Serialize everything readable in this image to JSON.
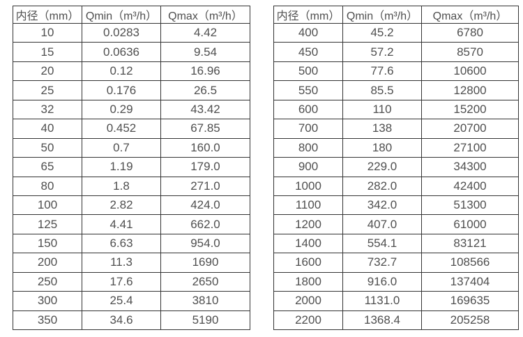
{
  "colors": {
    "border": "#333333",
    "text": "#4f4f4f",
    "background": "#ffffff"
  },
  "tables": [
    {
      "name": "flow-table-small-diameters",
      "headers": [
        "内径（mm）",
        "Qmin（m³/h）",
        "Qmax（m³/h）"
      ],
      "rows": [
        [
          "10",
          "0.0283",
          "4.42"
        ],
        [
          "15",
          "0.0636",
          "9.54"
        ],
        [
          "20",
          "0.12",
          "16.96"
        ],
        [
          "25",
          "0.176",
          "26.5"
        ],
        [
          "32",
          "0.29",
          "43.42"
        ],
        [
          "40",
          "0.452",
          "67.85"
        ],
        [
          "50",
          "0.7",
          "160.0"
        ],
        [
          "65",
          "1.19",
          "179.0"
        ],
        [
          "80",
          "1.8",
          "271.0"
        ],
        [
          "100",
          "2.82",
          "424.0"
        ],
        [
          "125",
          "4.41",
          "662.0"
        ],
        [
          "150",
          "6.63",
          "954.0"
        ],
        [
          "200",
          "11.3",
          "1690"
        ],
        [
          "250",
          "17.6",
          "2650"
        ],
        [
          "300",
          "25.4",
          "3810"
        ],
        [
          "350",
          "34.6",
          "5190"
        ]
      ]
    },
    {
      "name": "flow-table-large-diameters",
      "headers": [
        "内径（mm）",
        "Qmin（m³/h）",
        "Qmax（m³/h）"
      ],
      "rows": [
        [
          "400",
          "45.2",
          "6780"
        ],
        [
          "450",
          "57.2",
          "8570"
        ],
        [
          "500",
          "77.6",
          "10600"
        ],
        [
          "550",
          "85.5",
          "12800"
        ],
        [
          "600",
          "110",
          "15200"
        ],
        [
          "700",
          "138",
          "20700"
        ],
        [
          "800",
          "180",
          "27100"
        ],
        [
          "900",
          "229.0",
          "34300"
        ],
        [
          "1000",
          "282.0",
          "42400"
        ],
        [
          "1100",
          "342.0",
          "51300"
        ],
        [
          "1200",
          "407.0",
          "61000"
        ],
        [
          "1400",
          "554.1",
          "83121"
        ],
        [
          "1600",
          "732.7",
          "108566"
        ],
        [
          "1800",
          "916.0",
          "137404"
        ],
        [
          "2000",
          "1131.0",
          "169635"
        ],
        [
          "2200",
          "1368.4",
          "205258"
        ]
      ]
    }
  ]
}
